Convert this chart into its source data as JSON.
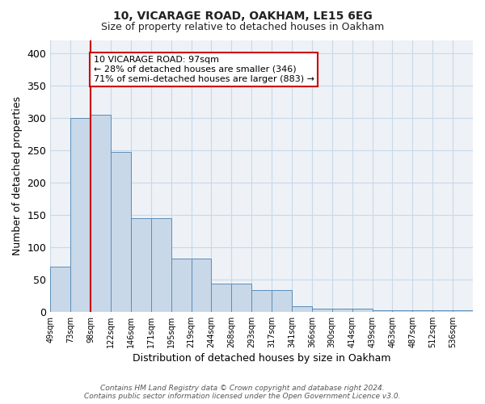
{
  "title1": "10, VICARAGE ROAD, OAKHAM, LE15 6EG",
  "title2": "Size of property relative to detached houses in Oakham",
  "xlabel": "Distribution of detached houses by size in Oakham",
  "ylabel": "Number of detached properties",
  "categories": [
    "49sqm",
    "73sqm",
    "98sqm",
    "122sqm",
    "146sqm",
    "171sqm",
    "195sqm",
    "219sqm",
    "244sqm",
    "268sqm",
    "293sqm",
    "317sqm",
    "341sqm",
    "366sqm",
    "390sqm",
    "414sqm",
    "439sqm",
    "463sqm",
    "487sqm",
    "512sqm",
    "536sqm"
  ],
  "bar_heights": [
    70,
    300,
    305,
    248,
    145,
    145,
    82,
    82,
    44,
    44,
    33,
    33,
    8,
    5,
    5,
    5,
    2,
    2,
    2,
    2,
    2
  ],
  "bar_color": "#c8d8e8",
  "bar_edge_color": "#5b8db8",
  "red_line_x": 2.0,
  "annotation_text": "10 VICARAGE ROAD: 97sqm\n← 28% of detached houses are smaller (346)\n71% of semi-detached houses are larger (883) →",
  "annotation_box_color": "#ffffff",
  "annotation_border_color": "#cc0000",
  "ylim": [
    0,
    420
  ],
  "yticks": [
    0,
    50,
    100,
    150,
    200,
    250,
    300,
    350,
    400
  ],
  "footer": "Contains HM Land Registry data © Crown copyright and database right 2024.\nContains public sector information licensed under the Open Government Licence v3.0.",
  "bg_color": "#eef2f7",
  "grid_color": "#c8d8e8",
  "title1_fontsize": 10,
  "title2_fontsize": 9,
  "ylabel_fontsize": 9,
  "xlabel_fontsize": 9
}
